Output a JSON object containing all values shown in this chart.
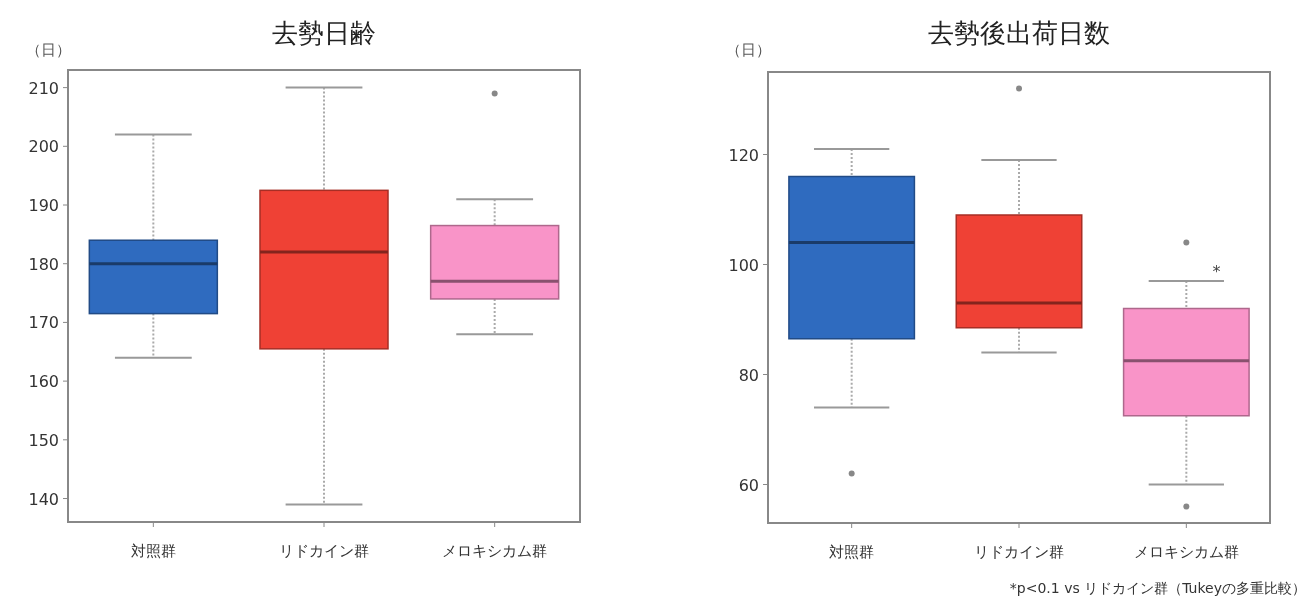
{
  "chart_data": [
    {
      "type": "box",
      "title": "去勢日齢",
      "ylabel": "（日）",
      "categories": [
        "対照群",
        "リドカイン群",
        "メロキシカム群"
      ],
      "colors": [
        "#2f6bbf",
        "#ef4135",
        "#f994c8"
      ],
      "boxes": [
        {
          "low": 164,
          "q1": 171.5,
          "median": 180,
          "q3": 184,
          "high": 202
        },
        {
          "low": 139,
          "q1": 165.5,
          "median": 182,
          "q3": 192.5,
          "high": 210
        },
        {
          "low": 168,
          "q1": 174,
          "median": 177,
          "q3": 186.5,
          "high": 191,
          "outliers": [
            209
          ]
        }
      ],
      "ylim": [
        136,
        213
      ],
      "yticks": [
        140,
        150,
        160,
        170,
        180,
        190,
        200,
        210
      ]
    },
    {
      "type": "box",
      "title": "去勢後出荷日数",
      "ylabel": "（日）",
      "categories": [
        "対照群",
        "リドカイン群",
        "メロキシカム群"
      ],
      "colors": [
        "#2f6bbf",
        "#ef4135",
        "#f994c8"
      ],
      "boxes": [
        {
          "low": 74,
          "q1": 86.5,
          "median": 104,
          "q3": 116,
          "high": 121,
          "outliers": [
            62
          ]
        },
        {
          "low": 84,
          "q1": 88.5,
          "median": 93,
          "q3": 109,
          "high": 119,
          "outliers": [
            132
          ]
        },
        {
          "low": 60,
          "q1": 72.5,
          "median": 82.5,
          "q3": 92,
          "high": 97,
          "outliers": [
            104,
            56
          ]
        }
      ],
      "ylim": [
        53,
        135
      ],
      "yticks": [
        60,
        80,
        100,
        120
      ],
      "annotations": [
        "*",
        "*p<0.1 vs リドカイン群（Tukeyの多重比較）"
      ]
    }
  ]
}
